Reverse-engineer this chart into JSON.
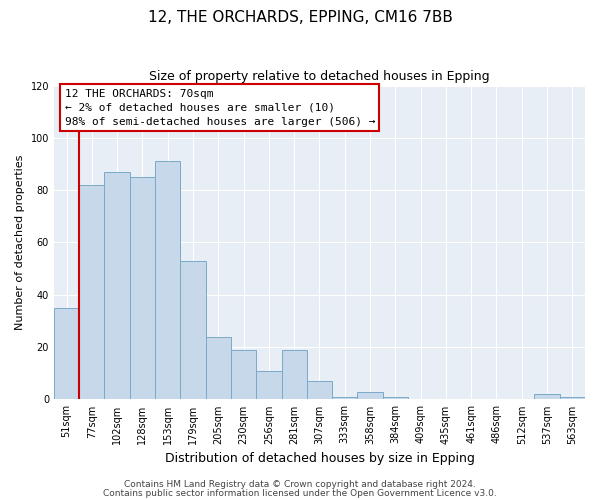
{
  "title": "12, THE ORCHARDS, EPPING, CM16 7BB",
  "subtitle": "Size of property relative to detached houses in Epping",
  "xlabel": "Distribution of detached houses by size in Epping",
  "ylabel": "Number of detached properties",
  "bar_labels": [
    "51sqm",
    "77sqm",
    "102sqm",
    "128sqm",
    "153sqm",
    "179sqm",
    "205sqm",
    "230sqm",
    "256sqm",
    "281sqm",
    "307sqm",
    "333sqm",
    "358sqm",
    "384sqm",
    "409sqm",
    "435sqm",
    "461sqm",
    "486sqm",
    "512sqm",
    "537sqm",
    "563sqm"
  ],
  "bar_values": [
    35,
    82,
    87,
    85,
    91,
    53,
    24,
    19,
    11,
    19,
    7,
    1,
    3,
    1,
    0,
    0,
    0,
    0,
    0,
    2,
    1
  ],
  "bar_color": "#c8d8eb",
  "bar_edge_color": "#7aaac8",
  "annotation_box_text": "12 THE ORCHARDS: 70sqm\n← 2% of detached houses are smaller (10)\n98% of semi-detached houses are larger (506) →",
  "annotation_box_edge_color": "#cc0000",
  "annotation_box_fill": "#ffffff",
  "vertical_line_color": "#cc0000",
  "ylim": [
    0,
    120
  ],
  "yticks": [
    0,
    20,
    40,
    60,
    80,
    100,
    120
  ],
  "footer_line1": "Contains HM Land Registry data © Crown copyright and database right 2024.",
  "footer_line2": "Contains public sector information licensed under the Open Government Licence v3.0.",
  "bg_color": "#ffffff",
  "plot_bg_color": "#e8eef5",
  "title_fontsize": 11,
  "subtitle_fontsize": 9,
  "xlabel_fontsize": 9,
  "ylabel_fontsize": 8,
  "tick_fontsize": 7,
  "annotation_fontsize": 8,
  "footer_fontsize": 6.5
}
